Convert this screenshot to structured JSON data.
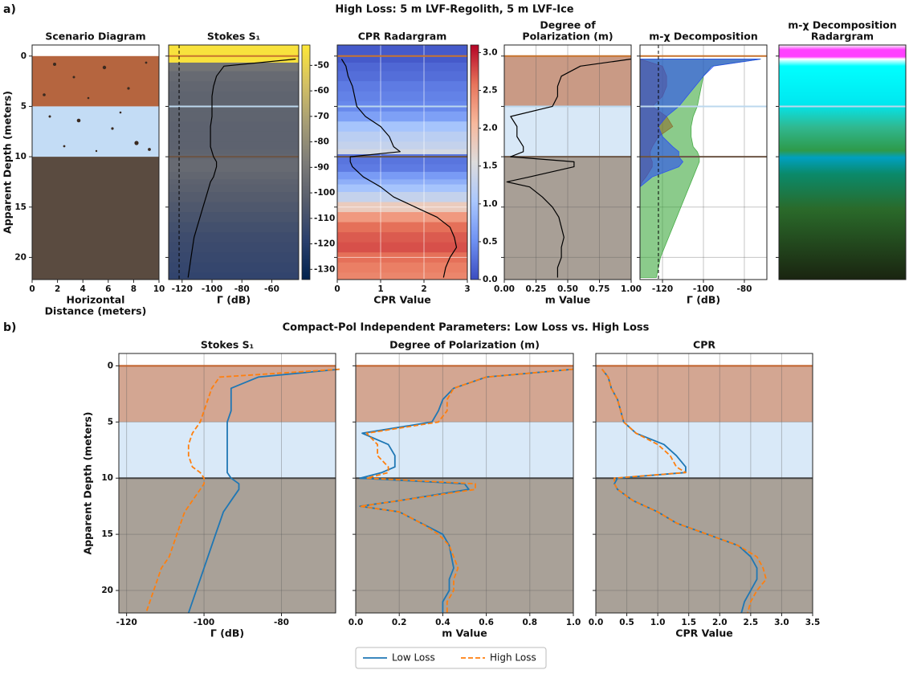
{
  "panel_a": {
    "label": "a)",
    "title": "High Loss: 5 m LVF-Regolith, 5 m LVF-Ice"
  },
  "panel_b": {
    "label": "b)",
    "title": "Compact-Pol Independent Parameters: Low Loss vs. High Loss"
  },
  "chart_data": [
    {
      "type": "diagram",
      "title": "Scenario Diagram",
      "xlabel": [
        "Horizontal",
        "Distance (meters)"
      ],
      "ylabel": "Apparent Depth (meters)",
      "xlim": [
        0,
        10
      ],
      "xticks": [
        0,
        2,
        4,
        6,
        8,
        10
      ],
      "ylim": [
        22.2,
        -1.1
      ],
      "yticks": [
        0,
        5,
        10,
        15,
        20
      ],
      "layers": [
        0,
        5,
        10
      ],
      "layer_colors": [
        "#b5653f",
        "#c3dcf5",
        "#5a4b40"
      ]
    },
    {
      "type": "line",
      "title": "Stokes S₁",
      "xlabel": "Γ (dB)",
      "xlim": [
        -129,
        -42
      ],
      "xticks": [
        -120,
        -100,
        -80,
        -60
      ],
      "ylim": [
        22.2,
        -1.1
      ],
      "yticks": [
        0,
        5,
        10,
        15,
        20
      ],
      "vline": -122,
      "radargram": true,
      "boundaries": [
        0,
        5,
        10
      ],
      "boundary_colors": [
        "#c8742f",
        "#bcd8ee",
        "#6b5444"
      ],
      "depth": [
        0.3,
        1,
        2,
        3,
        4,
        5,
        6,
        7,
        8,
        9,
        9.5,
        10,
        10.5,
        11,
        12,
        12.5,
        13,
        14,
        15,
        16,
        17,
        18,
        19,
        20,
        21,
        22
      ],
      "series": [
        {
          "color": "#000000",
          "values": [
            -44,
            -92,
            -97,
            -99,
            -100,
            -100,
            -100,
            -101,
            -101,
            -101,
            -100,
            -99,
            -97,
            -97,
            -99,
            -101,
            -102,
            -104,
            -106,
            -108,
            -110,
            -112,
            -113,
            -114,
            -115,
            -116
          ]
        }
      ],
      "colorbar": {
        "lim": [
          -134,
          -42
        ],
        "ticks": [
          -50,
          -60,
          -70,
          -80,
          -90,
          -100,
          -110,
          -120,
          -130
        ],
        "colors": [
          "#00224e",
          "#2a3f6d",
          "#575d6d",
          "#7d7c78",
          "#a69d75",
          "#d3c064",
          "#fde737"
        ]
      }
    },
    {
      "type": "line",
      "title": "CPR Radargram",
      "xlabel": "CPR Value",
      "xlim": [
        0,
        3
      ],
      "xticks": [
        0,
        1,
        2,
        3
      ],
      "ylim": [
        22.2,
        -1.1
      ],
      "yticks": [
        0,
        5,
        10,
        15,
        20
      ],
      "radargram": true,
      "grid": true,
      "boundaries": [
        0,
        5,
        10
      ],
      "boundary_colors": [
        "#c8742f",
        "#bcd8ee",
        "#6b5444"
      ],
      "depth": [
        0.3,
        1,
        2,
        3,
        4,
        5,
        6,
        7,
        8,
        9,
        9.5,
        10,
        10.5,
        11,
        12,
        12.5,
        13,
        14,
        15,
        16,
        17,
        18,
        19,
        20,
        21,
        22
      ],
      "series": [
        {
          "color": "#000000",
          "values": [
            0.1,
            0.2,
            0.25,
            0.35,
            0.4,
            0.45,
            0.65,
            1.0,
            1.2,
            1.3,
            1.45,
            0.3,
            0.3,
            0.35,
            0.6,
            0.8,
            1.0,
            1.3,
            1.8,
            2.3,
            2.6,
            2.7,
            2.75,
            2.6,
            2.5,
            2.45
          ]
        }
      ],
      "colorbar": {
        "lim": [
          0,
          3.1
        ],
        "ticks": [
          {
            "value": 0,
            "label": "0.0"
          },
          0.5,
          {
            "value": 1,
            "label": "1.0"
          },
          1.5,
          {
            "value": 2,
            "label": "2.0"
          },
          2.5,
          {
            "value": 3,
            "label": "3.0"
          }
        ],
        "colors": [
          "#3b4cc0",
          "#6f92f3",
          "#aac7fd",
          "#dddcdc",
          "#f7b89c",
          "#e7745b",
          "#b40426"
        ]
      }
    },
    {
      "type": "line",
      "title": [
        "Degree of",
        "Polarization (m)"
      ],
      "xlabel": "m Value",
      "xlim": [
        0,
        1
      ],
      "xticks": [
        {
          "value": 0,
          "label": "0.00"
        },
        0.25,
        {
          "value": 0.5,
          "label": "0.50"
        },
        0.75,
        {
          "value": 1,
          "label": "1.00"
        }
      ],
      "ylim": [
        22.2,
        -1.1
      ],
      "yticks": [
        0,
        5,
        10,
        15,
        20
      ],
      "grid": true,
      "layers": [
        0,
        5,
        10
      ],
      "layer_colors": [
        "#c99a85",
        "#d8e8f7",
        "#a89f96"
      ],
      "boundaries": [
        0,
        5,
        10
      ],
      "boundary_colors": [
        "#c8742f",
        "#bcd8ee",
        "#6b5444"
      ],
      "depth": [
        0.3,
        1,
        2,
        3,
        4,
        5,
        6,
        7,
        8,
        9,
        9.5,
        10,
        10.5,
        11,
        12,
        12.5,
        13,
        14,
        15,
        16,
        17,
        18,
        19,
        20,
        21,
        22
      ],
      "series": [
        {
          "color": "#000000",
          "values": [
            1.0,
            0.6,
            0.45,
            0.42,
            0.42,
            0.38,
            0.05,
            0.1,
            0.1,
            0.15,
            0.15,
            0.05,
            0.55,
            0.55,
            0.2,
            0.02,
            0.2,
            0.3,
            0.38,
            0.43,
            0.45,
            0.47,
            0.45,
            0.45,
            0.42,
            0.42
          ]
        }
      ]
    },
    {
      "type": "area",
      "title": "m-χ Decomposition",
      "xlabel": "Γ (dB)",
      "xlim": [
        -131,
        -69
      ],
      "xticks": [
        -120,
        -100,
        -80
      ],
      "ylim": [
        22.2,
        -1.1
      ],
      "yticks": [
        0,
        5,
        10,
        15,
        20
      ],
      "grid": true,
      "vline": -122,
      "boundaries": [
        0,
        5,
        10
      ],
      "boundary_colors": [
        "#c8742f",
        "#bcd8ee",
        "#6b5444"
      ],
      "depth": [
        0.3,
        1,
        2,
        3,
        4,
        5,
        6,
        7,
        8,
        9,
        9.5,
        10,
        10.5,
        11,
        12,
        12.5,
        13,
        14,
        15,
        16,
        17,
        18,
        19,
        20,
        21,
        22
      ],
      "series": [
        {
          "color": "#ff2020",
          "values": [
            -131,
            -120,
            -118,
            -118,
            -120,
            -125,
            -118,
            -115,
            -122,
            -125,
            -126,
            -126,
            -125,
            -125,
            -128,
            -130,
            -131,
            -131,
            -131,
            -131,
            -131,
            -131,
            -131,
            -131,
            -131,
            -131
          ]
        },
        {
          "color": "#2ca02c",
          "values": [
            -72,
            -96,
            -100,
            -101,
            -102,
            -103,
            -105,
            -106,
            -106,
            -105,
            -103,
            -102,
            -102,
            -103,
            -105,
            -106,
            -107,
            -109,
            -111,
            -113,
            -115,
            -117,
            -119,
            -121,
            -122,
            -123
          ]
        },
        {
          "color": "#1f3fff",
          "values": [
            -72,
            -95,
            -100,
            -104,
            -108,
            -112,
            -118,
            -122,
            -120,
            -115,
            -112,
            -112,
            -110,
            -112,
            -125,
            -128,
            -131,
            -131,
            -131,
            -131,
            -131,
            -131,
            -131,
            -131,
            -131,
            -131
          ]
        }
      ]
    },
    {
      "type": "radargram",
      "title": [
        "m-χ Decomposition",
        "Radargram"
      ],
      "ylim": [
        22.2,
        -1.1
      ],
      "yticks": [
        0,
        5,
        10,
        15,
        20
      ],
      "boundaries": [
        5
      ],
      "boundary_colors": [
        "#bcd8ee"
      ]
    },
    {
      "type": "line",
      "title": "Stokes S₁",
      "xlabel": "Γ (dB)",
      "ylabel": "Apparent Depth (meters)",
      "xlim": [
        -122,
        -66
      ],
      "xticks": [
        -120,
        -100,
        -80
      ],
      "ylim": [
        22,
        -1.1
      ],
      "yticks": [
        0,
        5,
        10,
        15,
        20
      ],
      "grid": true,
      "layers": [
        0,
        5,
        10
      ],
      "layer_colors": [
        "#d3a692",
        "#d9e9f8",
        "#a9a198"
      ],
      "boundaries": [
        0,
        10
      ],
      "boundary_colors": [
        "#c0622a",
        "#444444"
      ],
      "depth": [
        0.3,
        1,
        2,
        3,
        4,
        5,
        6,
        7,
        8,
        9,
        9.5,
        10,
        10.5,
        11,
        12,
        12.5,
        13,
        14,
        15,
        16,
        17,
        18,
        19,
        20,
        21,
        22
      ],
      "series": [
        {
          "name": "Low Loss",
          "color": "#1f77b4",
          "values": [
            -65,
            -86,
            -93,
            -93,
            -93,
            -94,
            -94,
            -94,
            -94,
            -94,
            -94,
            -93,
            -91,
            -91,
            -93,
            -94,
            -95,
            -96,
            -97,
            -98,
            -99,
            -100,
            -101,
            -102,
            -103,
            -104
          ]
        },
        {
          "name": "High Loss",
          "color": "#ff7f0e",
          "dash": true,
          "values": [
            -65,
            -96,
            -98,
            -99,
            -100,
            -101,
            -103,
            -104,
            -104,
            -103,
            -101,
            -100,
            -100,
            -101,
            -103,
            -104,
            -105,
            -106,
            -107,
            -108,
            -109,
            -111,
            -112,
            -113,
            -114,
            -115
          ]
        }
      ]
    },
    {
      "type": "line",
      "title": "Degree of Polarization (m)",
      "xlabel": "m Value",
      "xlim": [
        0,
        1
      ],
      "xticks": [
        {
          "value": 0,
          "label": "0.0"
        },
        0.2,
        0.4,
        0.6,
        0.8,
        {
          "value": 1,
          "label": "1.0"
        }
      ],
      "ylim": [
        22,
        -1.1
      ],
      "yticks": [
        0,
        5,
        10,
        15,
        20
      ],
      "grid": true,
      "layers": [
        0,
        5,
        10
      ],
      "layer_colors": [
        "#d3a692",
        "#d9e9f8",
        "#a9a198"
      ],
      "boundaries": [
        0,
        10
      ],
      "boundary_colors": [
        "#c0622a",
        "#444444"
      ],
      "depth": [
        0.3,
        1,
        2,
        3,
        4,
        5,
        6,
        7,
        8,
        9,
        9.5,
        10,
        10.5,
        11,
        12,
        12.5,
        13,
        14,
        15,
        16,
        17,
        18,
        19,
        20,
        21,
        22
      ],
      "series": [
        {
          "name": "Low Loss",
          "color": "#1f77b4",
          "values": [
            1.0,
            0.6,
            0.45,
            0.4,
            0.38,
            0.35,
            0.03,
            0.15,
            0.18,
            0.18,
            0.12,
            0.02,
            0.5,
            0.52,
            0.2,
            0.02,
            0.2,
            0.3,
            0.4,
            0.43,
            0.44,
            0.45,
            0.43,
            0.43,
            0.4,
            0.4
          ]
        },
        {
          "name": "High Loss",
          "color": "#ff7f0e",
          "dash": true,
          "values": [
            1.0,
            0.6,
            0.45,
            0.42,
            0.42,
            0.38,
            0.05,
            0.1,
            0.1,
            0.15,
            0.15,
            0.05,
            0.55,
            0.55,
            0.2,
            0.02,
            0.2,
            0.3,
            0.38,
            0.43,
            0.45,
            0.47,
            0.45,
            0.45,
            0.42,
            0.42
          ]
        }
      ]
    },
    {
      "type": "line",
      "title": "CPR",
      "xlabel": "CPR Value",
      "xlim": [
        0,
        3.5
      ],
      "xticks": [
        {
          "value": 0,
          "label": "0.0"
        },
        0.5,
        {
          "value": 1,
          "label": "1.0"
        },
        1.5,
        {
          "value": 2,
          "label": "2.0"
        },
        2.5,
        {
          "value": 3,
          "label": "3.0"
        },
        3.5
      ],
      "ylim": [
        22,
        -1.1
      ],
      "yticks": [
        0,
        5,
        10,
        15,
        20
      ],
      "grid": true,
      "layers": [
        0,
        5,
        10
      ],
      "layer_colors": [
        "#d3a692",
        "#d9e9f8",
        "#a9a198"
      ],
      "boundaries": [
        0,
        10
      ],
      "boundary_colors": [
        "#c0622a",
        "#444444"
      ],
      "depth": [
        0.3,
        1,
        2,
        3,
        4,
        5,
        6,
        7,
        8,
        9,
        9.5,
        10,
        10.5,
        11,
        12,
        12.5,
        13,
        14,
        15,
        16,
        17,
        18,
        19,
        20,
        21,
        22
      ],
      "series": [
        {
          "name": "Low Loss",
          "color": "#1f77b4",
          "values": [
            0.1,
            0.2,
            0.25,
            0.35,
            0.4,
            0.45,
            0.65,
            1.1,
            1.3,
            1.45,
            1.45,
            0.35,
            0.3,
            0.35,
            0.6,
            0.8,
            1.0,
            1.3,
            1.8,
            2.3,
            2.5,
            2.6,
            2.6,
            2.5,
            2.4,
            2.35
          ]
        },
        {
          "name": "High Loss",
          "color": "#ff7f0e",
          "dash": true,
          "values": [
            0.1,
            0.2,
            0.25,
            0.35,
            0.4,
            0.45,
            0.65,
            1.0,
            1.2,
            1.3,
            1.45,
            0.3,
            0.3,
            0.35,
            0.6,
            0.8,
            1.0,
            1.3,
            1.8,
            2.3,
            2.6,
            2.7,
            2.75,
            2.6,
            2.5,
            2.45
          ]
        }
      ]
    }
  ]
}
